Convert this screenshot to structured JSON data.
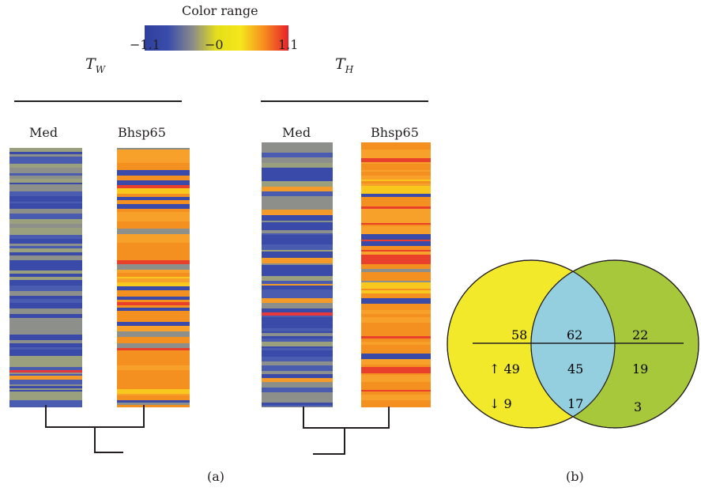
{
  "color_range": {
    "title": "Color range",
    "ticks": [
      "−1.1",
      "−0",
      "1.1"
    ],
    "colors": [
      "#2e3f9e",
      "#3b4dab",
      "#8a8a8a",
      "#e3df1a",
      "#f6e61c",
      "#f68b1f",
      "#e8202a"
    ]
  },
  "panel_a": {
    "caption": "(a)",
    "groups": [
      {
        "title_main": "T",
        "title_sub": "W",
        "col1": "Med",
        "col2": "Bhsp65"
      },
      {
        "title_main": "T",
        "title_sub": "H",
        "col1": "Med",
        "col2": "Bhsp65"
      }
    ]
  },
  "panel_b": {
    "caption": "(b)",
    "left_color": "#f1e92a",
    "right_color": "#a8c83b",
    "overlap_color": "#94cfe0",
    "left_total": "58",
    "overlap_total": "62",
    "right_total": "22",
    "left_up": "↑ 49",
    "left_down": "↓ 9",
    "overlap_up": "45",
    "overlap_down": "17",
    "right_up": "19",
    "right_down": "3"
  }
}
